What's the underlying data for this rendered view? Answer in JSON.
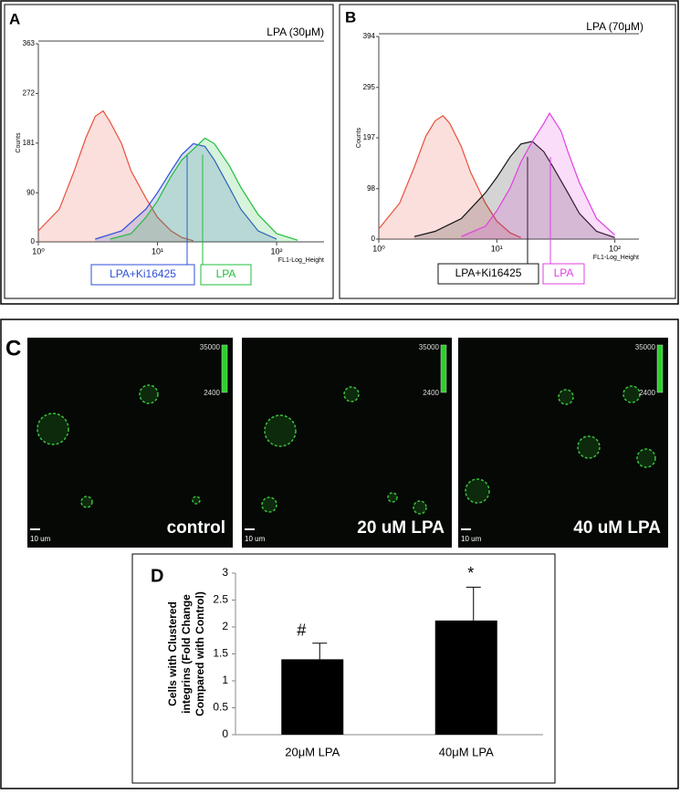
{
  "chart_data": [
    {
      "type": "line",
      "panel": "A",
      "title": "LPA (30μM)",
      "xlabel": "FL1-Log_Height",
      "ylabel": "Counts",
      "xscale": "log",
      "xlim": [
        1,
        250
      ],
      "xticks": [
        {
          "value": 1,
          "label": "10⁰"
        },
        {
          "value": 10,
          "label": "10¹"
        },
        {
          "value": 100,
          "label": "10²"
        }
      ],
      "ylim": [
        0,
        363
      ],
      "yticks": [
        0,
        90,
        181,
        272,
        363
      ],
      "series": [
        {
          "color": "#e8503c",
          "x": [
            1,
            1.5,
            2,
            2.5,
            3,
            3.5,
            4,
            5,
            6,
            8,
            10,
            13,
            16,
            20
          ],
          "values": [
            20,
            60,
            130,
            190,
            230,
            240,
            220,
            180,
            130,
            80,
            45,
            20,
            8,
            2
          ]
        },
        {
          "name": "LPA+Ki16425",
          "color": "#2f4fd8",
          "x": [
            3,
            5,
            8,
            10,
            13,
            16,
            20,
            25,
            30,
            40,
            50,
            70,
            100
          ],
          "values": [
            5,
            20,
            60,
            90,
            130,
            160,
            180,
            175,
            150,
            100,
            60,
            20,
            5
          ]
        },
        {
          "name": "LPA",
          "color": "#1fbf3a",
          "x": [
            4,
            6,
            8,
            10,
            13,
            16,
            20,
            25,
            30,
            40,
            50,
            70,
            100,
            150
          ],
          "values": [
            5,
            15,
            45,
            75,
            120,
            150,
            170,
            190,
            180,
            140,
            100,
            50,
            15,
            3
          ]
        }
      ]
    },
    {
      "type": "line",
      "panel": "B",
      "title": "LPA (70μM)",
      "xlabel": "FL1-Log_Height",
      "ylabel": "Counts",
      "xscale": "log",
      "xlim": [
        1,
        160
      ],
      "xticks": [
        {
          "value": 1,
          "label": "10⁰"
        },
        {
          "value": 10,
          "label": "10¹"
        },
        {
          "value": 100,
          "label": "10²"
        }
      ],
      "ylim": [
        0,
        394
      ],
      "yticks": [
        0,
        98,
        197,
        295,
        394
      ],
      "series": [
        {
          "color": "#e8503c",
          "x": [
            1,
            1.5,
            2,
            2.5,
            3,
            3.5,
            4,
            5,
            6,
            8,
            10,
            13,
            16
          ],
          "values": [
            20,
            70,
            140,
            200,
            230,
            240,
            225,
            180,
            130,
            70,
            35,
            12,
            3
          ]
        },
        {
          "name": "LPA+Ki16425",
          "color": "#111111",
          "x": [
            2,
            3,
            5,
            8,
            10,
            13,
            16,
            20,
            25,
            30,
            40,
            50,
            70,
            100
          ],
          "values": [
            5,
            15,
            40,
            90,
            120,
            160,
            185,
            190,
            170,
            140,
            90,
            50,
            15,
            3
          ]
        },
        {
          "name": "LPA",
          "color": "#e040e0",
          "x": [
            5,
            8,
            10,
            13,
            16,
            20,
            25,
            28,
            35,
            40,
            50,
            70,
            100
          ],
          "values": [
            5,
            25,
            55,
            100,
            150,
            190,
            225,
            245,
            210,
            170,
            110,
            40,
            8
          ]
        }
      ]
    },
    {
      "type": "bar",
      "panel": "D",
      "ylabel": "Cells with Clustered integrins (Fold Change Compared with Control)",
      "categories": [
        "20μM LPA",
        "40μM LPA"
      ],
      "values": [
        1.4,
        2.12
      ],
      "errors": [
        0.3,
        0.62
      ],
      "color": "#000000",
      "annotations": [
        "#",
        "*"
      ],
      "ylim": [
        0,
        3
      ],
      "yticks": [
        0,
        0.5,
        1,
        1.5,
        2,
        2.5,
        3
      ]
    }
  ],
  "microscopy": {
    "panel": "C",
    "colorbar": {
      "max": "35000",
      "min": "2400"
    },
    "scale_bar": "10 um",
    "images": [
      "control",
      "20 uM LPA",
      "40 uM LPA"
    ]
  }
}
